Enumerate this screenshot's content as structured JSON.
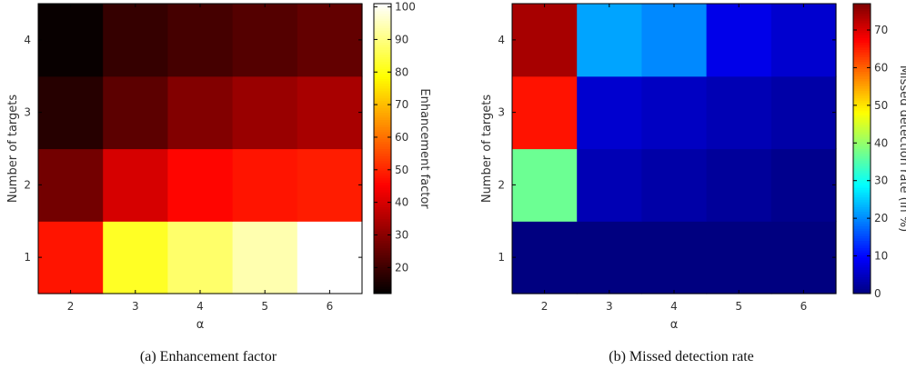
{
  "chart_data": [
    {
      "type": "heatmap",
      "caption": "(a) Enhancement factor",
      "xlabel": "α",
      "ylabel": "Number of targets",
      "x": [
        2,
        3,
        4,
        5,
        6
      ],
      "y": [
        1,
        2,
        3,
        4
      ],
      "values": [
        [
          48,
          82,
          88,
          94,
          101
        ],
        [
          27,
          40,
          46,
          48,
          49
        ],
        [
          17,
          24,
          29,
          32,
          34
        ],
        [
          13,
          19,
          21,
          23,
          25
        ]
      ],
      "colormap": "hot",
      "colorbar": {
        "label": "Enhancement factor",
        "range": [
          12,
          101
        ],
        "ticks": [
          20,
          30,
          40,
          50,
          60,
          70,
          80,
          90,
          100
        ]
      }
    },
    {
      "type": "heatmap",
      "caption": "(b) Missed detection rate",
      "xlabel": "α",
      "ylabel": "Number of targets",
      "x": [
        2,
        3,
        4,
        5,
        6
      ],
      "y": [
        1,
        2,
        3,
        4
      ],
      "values": [
        [
          0,
          0,
          0,
          0,
          0
        ],
        [
          37,
          4,
          3,
          2,
          1
        ],
        [
          66,
          6,
          5,
          4,
          3
        ],
        [
          74,
          22,
          20,
          8,
          6
        ]
      ],
      "colormap": "jet",
      "colorbar": {
        "label": "Missed detection rate (in %)",
        "range": [
          0,
          77
        ],
        "ticks": [
          0,
          10,
          20,
          30,
          40,
          50,
          60,
          70
        ]
      }
    }
  ]
}
